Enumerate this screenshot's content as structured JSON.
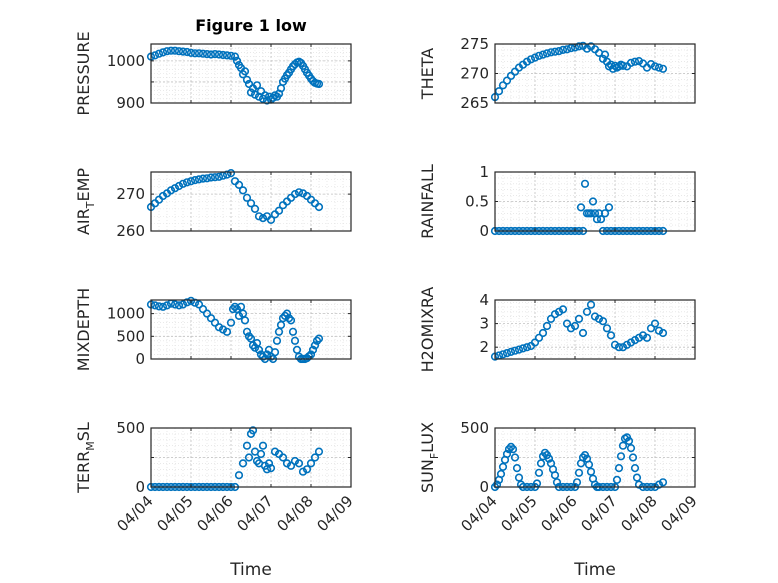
{
  "figure": {
    "title": "Figure 1 low",
    "xlabel": "Time",
    "marker_color": "#0072BD",
    "grid": "dotted minor + major",
    "x_ticks": [
      "04/04",
      "04/05",
      "04/06",
      "04/07",
      "04/08",
      "04/09"
    ]
  },
  "chart_data": [
    {
      "type": "scatter",
      "ylabel": "PRESSURE",
      "ylabel_sub": "",
      "ylabel_rest": "",
      "ylim": [
        900,
        1040
      ],
      "yticks": [
        900,
        950,
        1000
      ],
      "ytick_labels": [
        "900",
        "",
        "1000"
      ],
      "xlim": [
        0,
        5
      ],
      "x": [
        0.0,
        0.1,
        0.2,
        0.3,
        0.4,
        0.5,
        0.6,
        0.7,
        0.8,
        0.9,
        1.0,
        1.1,
        1.2,
        1.3,
        1.4,
        1.5,
        1.6,
        1.7,
        1.8,
        1.9,
        2.0,
        2.1,
        2.15,
        2.2,
        2.25,
        2.3,
        2.35,
        2.4,
        2.45,
        2.5,
        2.55,
        2.6,
        2.65,
        2.7,
        2.75,
        2.8,
        2.85,
        2.9,
        2.95,
        3.0,
        3.05,
        3.1,
        3.15,
        3.2,
        3.25,
        3.3,
        3.35,
        3.4,
        3.45,
        3.5,
        3.55,
        3.6,
        3.65,
        3.7,
        3.75,
        3.8,
        3.85,
        3.9,
        3.95,
        4.0,
        4.05,
        4.1,
        4.15,
        4.2
      ],
      "y": [
        1010,
        1013,
        1017,
        1020,
        1023,
        1024,
        1024,
        1023,
        1022,
        1021,
        1019,
        1018,
        1018,
        1017,
        1016,
        1015,
        1016,
        1015,
        1014,
        1013,
        1012,
        1010,
        1000,
        990,
        983,
        968,
        975,
        955,
        945,
        925,
        935,
        920,
        942,
        915,
        928,
        910,
        918,
        906,
        915,
        908,
        912,
        918,
        915,
        922,
        935,
        950,
        958,
        966,
        972,
        980,
        987,
        992,
        996,
        998,
        995,
        988,
        980,
        972,
        965,
        958,
        952,
        948,
        946,
        945
      ]
    },
    {
      "type": "scatter",
      "ylabel": "THETA",
      "ylabel_sub": "",
      "ylabel_rest": "",
      "ylim": [
        265,
        275
      ],
      "yticks": [
        265,
        270,
        275
      ],
      "ytick_labels": [
        "265",
        "270",
        "275"
      ],
      "xlim": [
        0,
        5
      ],
      "x": [
        0.0,
        0.1,
        0.2,
        0.3,
        0.4,
        0.5,
        0.6,
        0.7,
        0.8,
        0.9,
        1.0,
        1.1,
        1.2,
        1.3,
        1.4,
        1.5,
        1.6,
        1.7,
        1.8,
        1.9,
        2.0,
        2.1,
        2.2,
        2.3,
        2.4,
        2.5,
        2.6,
        2.7,
        2.75,
        2.8,
        2.85,
        2.9,
        2.95,
        3.0,
        3.05,
        3.1,
        3.15,
        3.2,
        3.3,
        3.4,
        3.5,
        3.6,
        3.7,
        3.8,
        3.9,
        4.0,
        4.1,
        4.2
      ],
      "y": [
        266,
        267,
        268,
        268.8,
        269.6,
        270.3,
        271.0,
        271.5,
        272.0,
        272.4,
        272.7,
        273.0,
        273.2,
        273.4,
        273.6,
        273.7,
        273.8,
        274.0,
        274.1,
        274.3,
        274.4,
        274.6,
        274.7,
        274.2,
        274.6,
        274.1,
        273.5,
        272.5,
        273.2,
        272.0,
        271.2,
        271.5,
        270.8,
        271.3,
        271.0,
        271.2,
        271.5,
        271.3,
        271.2,
        271.8,
        272.0,
        272.1,
        271.7,
        271.0,
        271.6,
        271.2,
        271.0,
        270.8
      ]
    },
    {
      "type": "scatter",
      "ylabel": "AIR",
      "ylabel_sub": "T",
      "ylabel_rest": "EMP",
      "ylim": [
        260,
        276
      ],
      "yticks": [
        260,
        270
      ],
      "ytick_labels": [
        "260",
        "270"
      ],
      "xlim": [
        0,
        5
      ],
      "x": [
        0.0,
        0.1,
        0.2,
        0.3,
        0.4,
        0.5,
        0.6,
        0.7,
        0.8,
        0.9,
        1.0,
        1.1,
        1.2,
        1.3,
        1.4,
        1.5,
        1.6,
        1.7,
        1.8,
        1.9,
        2.0,
        2.1,
        2.2,
        2.3,
        2.4,
        2.5,
        2.6,
        2.7,
        2.8,
        2.9,
        3.0,
        3.1,
        3.2,
        3.3,
        3.4,
        3.5,
        3.6,
        3.7,
        3.8,
        3.9,
        4.0,
        4.1,
        4.2
      ],
      "y": [
        266.5,
        267.5,
        268.5,
        269.5,
        270.2,
        271.0,
        271.6,
        272.2,
        272.8,
        273.2,
        273.5,
        273.8,
        274.0,
        274.2,
        274.3,
        274.5,
        274.6,
        274.7,
        275.0,
        275.3,
        275.7,
        273.5,
        272.5,
        271.0,
        269.0,
        267.5,
        266.0,
        264.0,
        263.5,
        264.0,
        263.0,
        264.5,
        265.5,
        267.0,
        268.0,
        269.0,
        270.0,
        270.5,
        270.2,
        269.5,
        268.5,
        267.5,
        266.5
      ]
    },
    {
      "type": "scatter",
      "ylabel": "RAINFALL",
      "ylabel_sub": "",
      "ylabel_rest": "",
      "ylim": [
        0,
        1
      ],
      "yticks": [
        0,
        0.5,
        1
      ],
      "ytick_labels": [
        "0",
        "0.5",
        "1"
      ],
      "xlim": [
        0,
        5
      ],
      "x": [
        0.0,
        0.1,
        0.2,
        0.3,
        0.4,
        0.5,
        0.6,
        0.7,
        0.8,
        0.9,
        1.0,
        1.1,
        1.2,
        1.3,
        1.4,
        1.5,
        1.6,
        1.7,
        1.8,
        1.9,
        2.0,
        2.1,
        2.15,
        2.2,
        2.25,
        2.3,
        2.35,
        2.4,
        2.45,
        2.5,
        2.55,
        2.6,
        2.65,
        2.7,
        2.75,
        2.8,
        2.85,
        2.9,
        3.0,
        3.1,
        3.2,
        3.3,
        3.4,
        3.5,
        3.6,
        3.7,
        3.8,
        3.9,
        4.0,
        4.1,
        4.2
      ],
      "y": [
        0,
        0,
        0,
        0,
        0,
        0,
        0,
        0,
        0,
        0,
        0,
        0,
        0,
        0,
        0,
        0,
        0,
        0,
        0,
        0,
        0,
        0,
        0.4,
        0,
        0.8,
        0.3,
        0.3,
        0.3,
        0.5,
        0.3,
        0.2,
        0.3,
        0.2,
        0,
        0.3,
        0,
        0.4,
        0,
        0,
        0,
        0,
        0,
        0,
        0,
        0,
        0,
        0,
        0,
        0,
        0,
        0
      ]
    },
    {
      "type": "scatter",
      "ylabel": "MIXDEPTH",
      "ylabel_sub": "",
      "ylabel_rest": "",
      "ylim": [
        0,
        1300
      ],
      "yticks": [
        0,
        500,
        1000
      ],
      "ytick_labels": [
        "0",
        "500",
        "1000"
      ],
      "xlim": [
        0,
        5
      ],
      "x": [
        0.0,
        0.1,
        0.2,
        0.3,
        0.4,
        0.5,
        0.6,
        0.7,
        0.8,
        0.9,
        1.0,
        1.1,
        1.2,
        1.3,
        1.4,
        1.5,
        1.6,
        1.7,
        1.8,
        1.9,
        2.0,
        2.05,
        2.1,
        2.15,
        2.2,
        2.25,
        2.3,
        2.35,
        2.4,
        2.45,
        2.5,
        2.55,
        2.6,
        2.65,
        2.7,
        2.75,
        2.8,
        2.85,
        2.9,
        2.95,
        3.0,
        3.05,
        3.1,
        3.15,
        3.2,
        3.25,
        3.3,
        3.35,
        3.4,
        3.45,
        3.5,
        3.55,
        3.6,
        3.65,
        3.7,
        3.75,
        3.8,
        3.85,
        3.9,
        3.95,
        4.0,
        4.05,
        4.1,
        4.15,
        4.2
      ],
      "y": [
        1200,
        1180,
        1160,
        1150,
        1180,
        1220,
        1200,
        1180,
        1200,
        1250,
        1280,
        1240,
        1200,
        1100,
        1000,
        900,
        800,
        700,
        650,
        600,
        800,
        1100,
        1150,
        1100,
        950,
        1150,
        1000,
        850,
        600,
        500,
        450,
        300,
        250,
        350,
        200,
        100,
        50,
        0,
        100,
        200,
        50,
        0,
        150,
        400,
        600,
        750,
        900,
        950,
        1000,
        900,
        850,
        600,
        400,
        200,
        50,
        0,
        0,
        0,
        20,
        60,
        100,
        200,
        300,
        400,
        450
      ]
    },
    {
      "type": "scatter",
      "ylabel": "H2OMIXRA",
      "ylabel_sub": "",
      "ylabel_rest": "",
      "ylim": [
        1.5,
        4
      ],
      "yticks": [
        2,
        3,
        4
      ],
      "ytick_labels": [
        "2",
        "3",
        "4"
      ],
      "xlim": [
        0,
        5
      ],
      "x": [
        0.0,
        0.1,
        0.2,
        0.3,
        0.4,
        0.5,
        0.6,
        0.7,
        0.8,
        0.9,
        1.0,
        1.1,
        1.2,
        1.3,
        1.4,
        1.5,
        1.6,
        1.7,
        1.8,
        1.9,
        2.0,
        2.1,
        2.2,
        2.3,
        2.4,
        2.5,
        2.6,
        2.7,
        2.8,
        2.9,
        3.0,
        3.1,
        3.2,
        3.3,
        3.4,
        3.5,
        3.6,
        3.7,
        3.8,
        3.9,
        4.0,
        4.1,
        4.2
      ],
      "y": [
        1.6,
        1.65,
        1.7,
        1.75,
        1.8,
        1.85,
        1.9,
        1.95,
        2.0,
        2.05,
        2.2,
        2.4,
        2.6,
        2.9,
        3.2,
        3.4,
        3.5,
        3.6,
        3.0,
        2.8,
        2.9,
        3.2,
        2.6,
        3.5,
        3.8,
        3.3,
        3.2,
        3.1,
        2.8,
        2.5,
        2.1,
        2.0,
        2.0,
        2.1,
        2.2,
        2.3,
        2.4,
        2.5,
        2.4,
        2.8,
        3.0,
        2.7,
        2.6
      ]
    },
    {
      "type": "scatter",
      "ylabel": "TERR",
      "ylabel_sub": "M",
      "ylabel_rest": "SL",
      "ylim": [
        0,
        500
      ],
      "yticks": [
        0,
        250,
        500
      ],
      "ytick_labels": [
        "0",
        "",
        "500"
      ],
      "xlim": [
        0,
        5
      ],
      "x": [
        0.0,
        0.1,
        0.2,
        0.3,
        0.4,
        0.5,
        0.6,
        0.7,
        0.8,
        0.9,
        1.0,
        1.1,
        1.2,
        1.3,
        1.4,
        1.5,
        1.6,
        1.7,
        1.8,
        1.9,
        2.0,
        2.1,
        2.2,
        2.3,
        2.4,
        2.45,
        2.5,
        2.55,
        2.6,
        2.65,
        2.7,
        2.75,
        2.8,
        2.85,
        2.9,
        2.95,
        3.0,
        3.1,
        3.2,
        3.3,
        3.4,
        3.5,
        3.6,
        3.7,
        3.8,
        3.9,
        4.0,
        4.1,
        4.2
      ],
      "y": [
        0,
        0,
        0,
        0,
        0,
        0,
        0,
        0,
        0,
        0,
        0,
        0,
        0,
        0,
        0,
        0,
        0,
        0,
        0,
        0,
        0,
        0,
        100,
        200,
        350,
        250,
        450,
        480,
        300,
        220,
        200,
        280,
        350,
        180,
        150,
        200,
        160,
        300,
        280,
        250,
        200,
        180,
        220,
        200,
        130,
        150,
        200,
        250,
        300
      ]
    },
    {
      "type": "scatter",
      "ylabel": "SUN",
      "ylabel_sub": "F",
      "ylabel_rest": "LUX",
      "ylim": [
        0,
        500
      ],
      "yticks": [
        0,
        250,
        500
      ],
      "ytick_labels": [
        "0",
        "",
        "500"
      ],
      "xlim": [
        0,
        5
      ],
      "x": [
        0.0,
        0.05,
        0.1,
        0.15,
        0.2,
        0.25,
        0.3,
        0.35,
        0.4,
        0.45,
        0.5,
        0.55,
        0.6,
        0.65,
        0.7,
        0.8,
        0.9,
        1.0,
        1.05,
        1.1,
        1.15,
        1.2,
        1.25,
        1.3,
        1.35,
        1.4,
        1.45,
        1.5,
        1.55,
        1.6,
        1.7,
        1.8,
        1.9,
        2.0,
        2.05,
        2.1,
        2.15,
        2.2,
        2.25,
        2.3,
        2.35,
        2.4,
        2.45,
        2.5,
        2.55,
        2.6,
        2.7,
        2.8,
        2.9,
        3.0,
        3.05,
        3.1,
        3.15,
        3.2,
        3.25,
        3.3,
        3.35,
        3.4,
        3.45,
        3.5,
        3.55,
        3.6,
        3.7,
        3.8,
        3.9,
        4.0,
        4.1,
        4.2
      ],
      "y": [
        0,
        20,
        60,
        110,
        170,
        230,
        280,
        320,
        340,
        320,
        250,
        160,
        80,
        20,
        0,
        0,
        0,
        0,
        30,
        120,
        200,
        260,
        290,
        270,
        240,
        200,
        150,
        100,
        40,
        0,
        0,
        0,
        0,
        0,
        40,
        120,
        200,
        250,
        270,
        240,
        190,
        130,
        70,
        20,
        0,
        0,
        0,
        0,
        0,
        0,
        60,
        160,
        260,
        350,
        410,
        420,
        390,
        330,
        250,
        160,
        80,
        20,
        0,
        0,
        0,
        0,
        20,
        40
      ]
    }
  ]
}
